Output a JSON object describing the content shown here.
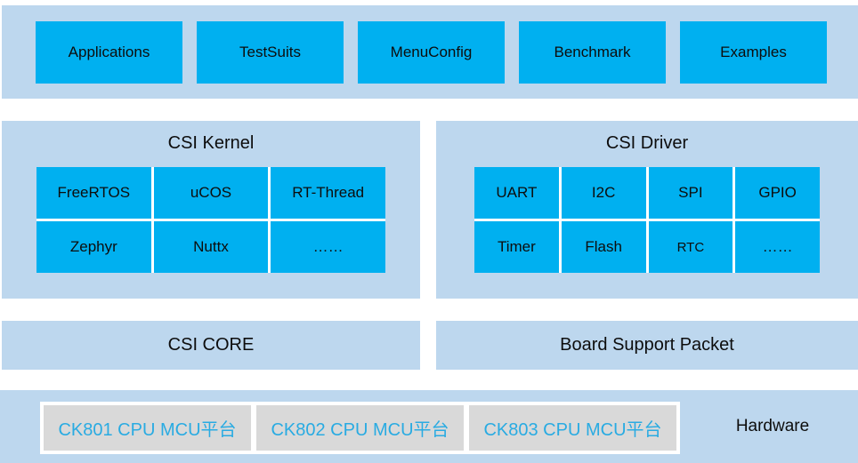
{
  "colors": {
    "band_background": "#BDD7EE",
    "box_cyan": "#00B0F0",
    "platform_gray": "#D9D9D9",
    "platform_text_cyan": "#29ABE2",
    "text_dark": "#0d0d0d"
  },
  "top_band": {
    "buttons": [
      "Applications",
      "TestSuits",
      "MenuConfig",
      "Benchmark",
      "Examples"
    ]
  },
  "kernel_panel": {
    "title": "CSI Kernel",
    "rows": [
      [
        "FreeRTOS",
        "uCOS",
        "RT-Thread"
      ],
      [
        "Zephyr",
        "Nuttx",
        "……"
      ]
    ]
  },
  "driver_panel": {
    "title": "CSI Driver",
    "rows": [
      [
        "UART",
        "I2C",
        "SPI",
        "GPIO"
      ],
      [
        "Timer",
        "Flash",
        "RTC",
        "……"
      ]
    ]
  },
  "core_bar": {
    "label": "CSI CORE"
  },
  "bsp_bar": {
    "label": "Board Support Packet"
  },
  "hardware_band": {
    "platforms": [
      "CK801 CPU MCU平台",
      "CK802 CPU MCU平台",
      "CK803 CPU MCU平台"
    ],
    "label": "Hardware"
  }
}
